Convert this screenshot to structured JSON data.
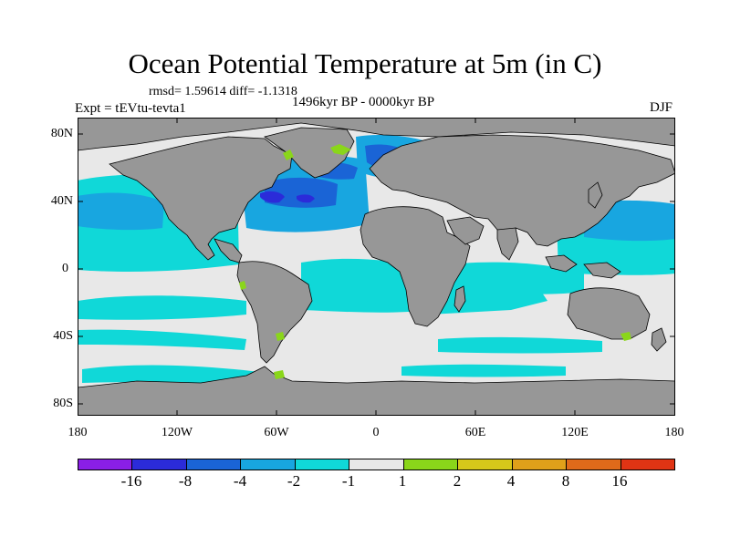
{
  "title": "Ocean Potential Temperature at 5m (in C)",
  "stats": "rmsd= 1.59614 diff= -1.1318",
  "experiment": "Expt = tEVtu-tevta1",
  "period": "1496kyr BP - 0000kyr BP",
  "season": "DJF",
  "axes": {
    "lat_labels": [
      "80N",
      "40N",
      "0",
      "40S",
      "80S"
    ],
    "lon_labels": [
      "180",
      "120W",
      "60W",
      "0",
      "60E",
      "120E",
      "180"
    ]
  },
  "colorbar": {
    "colors": [
      "#8a1fe6",
      "#2b2bd9",
      "#1a64d6",
      "#18a6e0",
      "#10d8d8",
      "#e8e8e8",
      "#8ad61a",
      "#d6c81a",
      "#e0a01a",
      "#e06a1a",
      "#e03414"
    ],
    "labels": [
      "-16",
      "-8",
      "-4",
      "-2",
      "-1",
      "1",
      "2",
      "4",
      "8",
      "16"
    ]
  },
  "map_colors": {
    "land": "#979797",
    "ocean_neutral": "#e8e8e8",
    "cool_1": "#10d8d8",
    "cool_2": "#18a6e0",
    "cool_4": "#1a64d6",
    "cool_8": "#2b2bd9",
    "warm_2": "#8ad61a"
  }
}
